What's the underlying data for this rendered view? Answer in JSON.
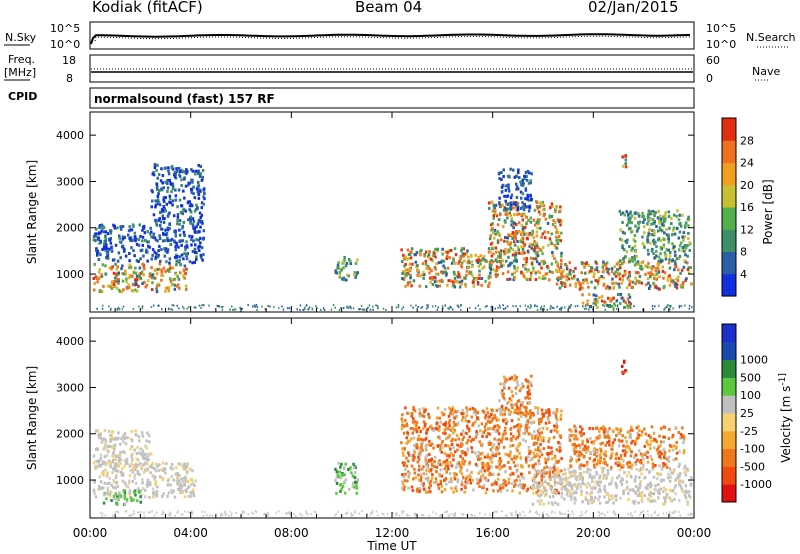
{
  "header": {
    "site": "Kodiak (fitACF)",
    "beam": "Beam 04",
    "date": "02/Jan/2015"
  },
  "top_panels": {
    "nsky_label": "N.Sky",
    "nsearch_label": "N.Search",
    "noise_ticks_left": [
      "10^5",
      "10^0"
    ],
    "noise_ticks_right": [
      "10^5",
      "10^0"
    ],
    "freq_label_1": "Freq.",
    "freq_label_2": "[MHz]",
    "freq_ticks": [
      "18",
      "8"
    ],
    "nave_label": "Nave",
    "nave_ticks": [
      "60",
      "0"
    ],
    "cpid_label": "CPID",
    "cpid_text": "normalsound (fast) 157 RF"
  },
  "time_axis": {
    "title": "Time UT",
    "ticks": [
      "00:00",
      "04:00",
      "08:00",
      "12:00",
      "16:00",
      "20:00",
      "00:00"
    ]
  },
  "chart_data": [
    {
      "type": "heatmap",
      "title": "",
      "xlabel": "Time UT",
      "ylabel": "Slant Range [km]",
      "xlim": [
        0,
        24
      ],
      "ylim": [
        180,
        4500
      ],
      "yticks": [
        "1000",
        "2000",
        "3000",
        "4000"
      ],
      "colorbar": {
        "label": "Power [dB]",
        "ticks": [
          "4",
          "8",
          "12",
          "16",
          "20",
          "24",
          "28"
        ],
        "colors": [
          "#1030e0",
          "#2a5fa8",
          "#3e8e6a",
          "#52b04a",
          "#c8c030",
          "#f0a020",
          "#f07020",
          "#e03010"
        ]
      },
      "regions": [
        {
          "t": [
            0.1,
            3.8
          ],
          "r": [
            650,
            1250
          ],
          "level": "strong"
        },
        {
          "t": [
            0.1,
            2.4
          ],
          "r": [
            1300,
            2100
          ],
          "level": "weak"
        },
        {
          "t": [
            2.4,
            4.5
          ],
          "r": [
            1250,
            3400
          ],
          "level": "weak"
        },
        {
          "t": [
            9.7,
            10.6
          ],
          "r": [
            900,
            1400
          ],
          "level": "medium"
        },
        {
          "t": [
            12.3,
            16.0
          ],
          "r": [
            750,
            1600
          ],
          "level": "strong"
        },
        {
          "t": [
            15.8,
            18.7
          ],
          "r": [
            900,
            2600
          ],
          "level": "strong"
        },
        {
          "t": [
            16.2,
            17.5
          ],
          "r": [
            2400,
            3300
          ],
          "level": "weak"
        },
        {
          "t": [
            18.5,
            23.9
          ],
          "r": [
            700,
            1300
          ],
          "level": "strong"
        },
        {
          "t": [
            19.5,
            21.5
          ],
          "r": [
            300,
            600
          ],
          "level": "strong"
        },
        {
          "t": [
            21.0,
            23.8
          ],
          "r": [
            1300,
            2400
          ],
          "level": "medium"
        },
        {
          "t": [
            21.1,
            21.3
          ],
          "r": [
            3300,
            3600
          ],
          "level": "strong"
        }
      ]
    },
    {
      "type": "heatmap",
      "title": "",
      "xlabel": "Time UT",
      "ylabel": "Slant Range [km]",
      "xlim": [
        0,
        24
      ],
      "ylim": [
        180,
        4500
      ],
      "yticks": [
        "1000",
        "2000",
        "3000",
        "4000"
      ],
      "colorbar": {
        "label": "Velocity [m s^-1]",
        "ticks": [
          "-1000",
          "-500",
          "-100",
          "-25",
          "25",
          "100",
          "500",
          "1000"
        ],
        "colors": [
          "#e01010",
          "#f04a10",
          "#f07818",
          "#f4a830",
          "#f8d070",
          "#c0c0c0",
          "#5cc840",
          "#2a8a3a",
          "#1a4ab0",
          "#1a30c8"
        ]
      },
      "regions": [
        {
          "t": [
            0.1,
            4.2
          ],
          "r": [
            650,
            1400
          ],
          "category": "ground-scatter"
        },
        {
          "t": [
            0.1,
            2.4
          ],
          "r": [
            1300,
            2100
          ],
          "category": "ground-scatter"
        },
        {
          "t": [
            0.5,
            2.0
          ],
          "r": [
            500,
            800
          ],
          "category": "positive-small"
        },
        {
          "t": [
            9.7,
            10.6
          ],
          "r": [
            700,
            1400
          ],
          "category": "positive-small"
        },
        {
          "t": [
            12.3,
            18.7
          ],
          "r": [
            750,
            2600
          ],
          "category": "negative-medium"
        },
        {
          "t": [
            16.2,
            17.5
          ],
          "r": [
            2400,
            3300
          ],
          "category": "negative-medium"
        },
        {
          "t": [
            17.5,
            23.9
          ],
          "r": [
            500,
            1300
          ],
          "category": "ground-scatter"
        },
        {
          "t": [
            19.0,
            23.6
          ],
          "r": [
            1300,
            2200
          ],
          "category": "negative-medium"
        },
        {
          "t": [
            21.1,
            21.3
          ],
          "r": [
            3300,
            3600
          ],
          "category": "negative-large"
        }
      ]
    }
  ]
}
